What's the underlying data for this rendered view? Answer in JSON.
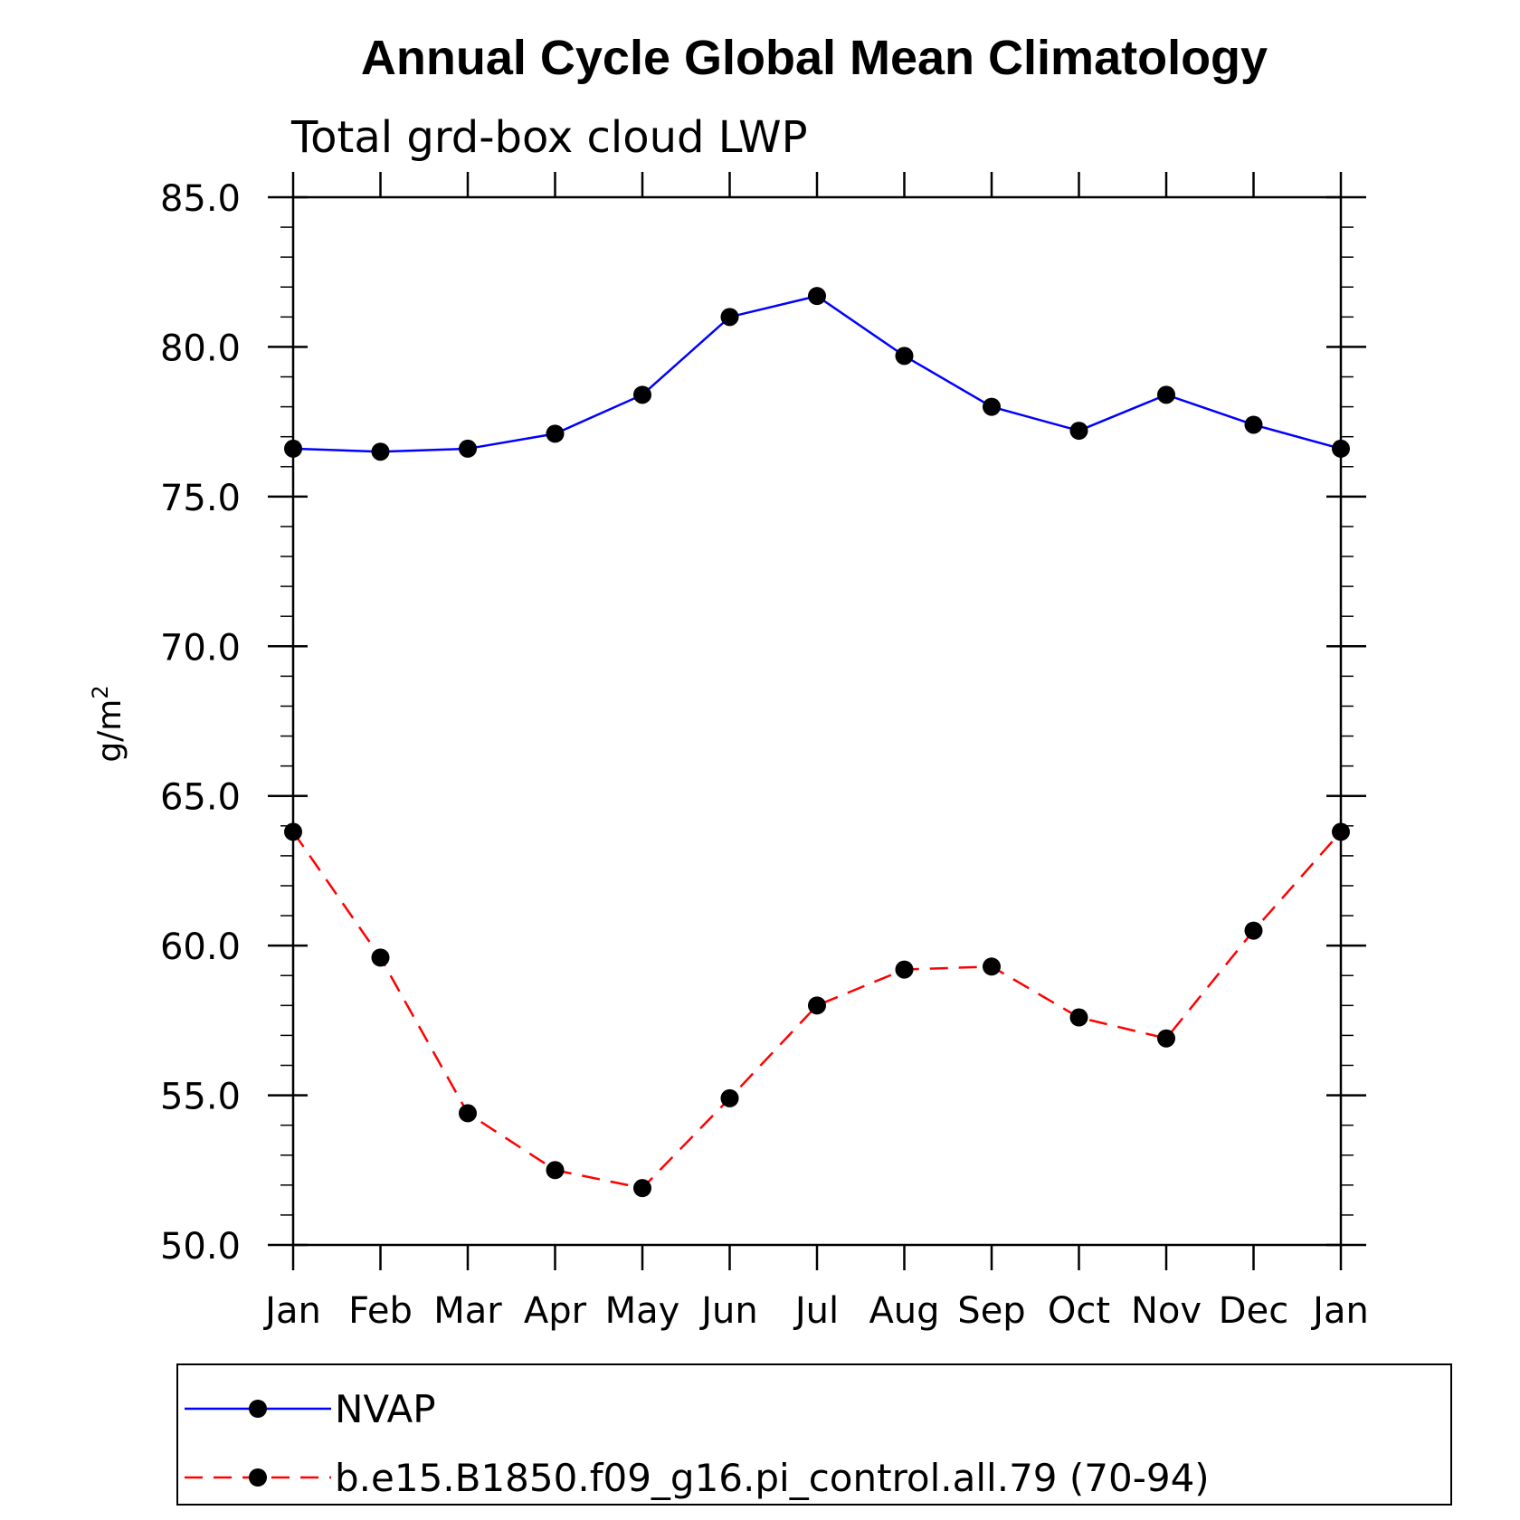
{
  "chart_data": {
    "type": "line",
    "title": "Annual Cycle Global Mean Climatology",
    "subtitle": "Total grd-box cloud LWP",
    "ylabel": "g/m",
    "ylabel_superscript": "2",
    "categories": [
      "Jan",
      "Feb",
      "Mar",
      "Apr",
      "May",
      "Jun",
      "Jul",
      "Aug",
      "Sep",
      "Oct",
      "Nov",
      "Dec",
      "Jan"
    ],
    "ylim": [
      50,
      85
    ],
    "yticks": [
      "50.0",
      "55.0",
      "60.0",
      "65.0",
      "70.0",
      "75.0",
      "80.0",
      "85.0"
    ],
    "grid": false,
    "legend_position": "bottom",
    "series": [
      {
        "name": "NVAP",
        "color": "#0000ff",
        "dash": "solid",
        "marker": "filled-circle",
        "values": [
          76.6,
          76.5,
          76.6,
          77.1,
          78.4,
          81.0,
          81.7,
          79.7,
          78.0,
          77.2,
          78.4,
          77.4,
          76.6
        ]
      },
      {
        "name": "b.e15.B1850.f09_g16.pi_control.all.79 (70-94)",
        "color": "#ff0000",
        "dash": "dashed",
        "marker": "filled-circle",
        "values": [
          63.8,
          59.6,
          54.4,
          52.5,
          51.9,
          54.9,
          58.0,
          59.2,
          59.3,
          57.6,
          56.9,
          60.5,
          63.8
        ]
      }
    ]
  }
}
